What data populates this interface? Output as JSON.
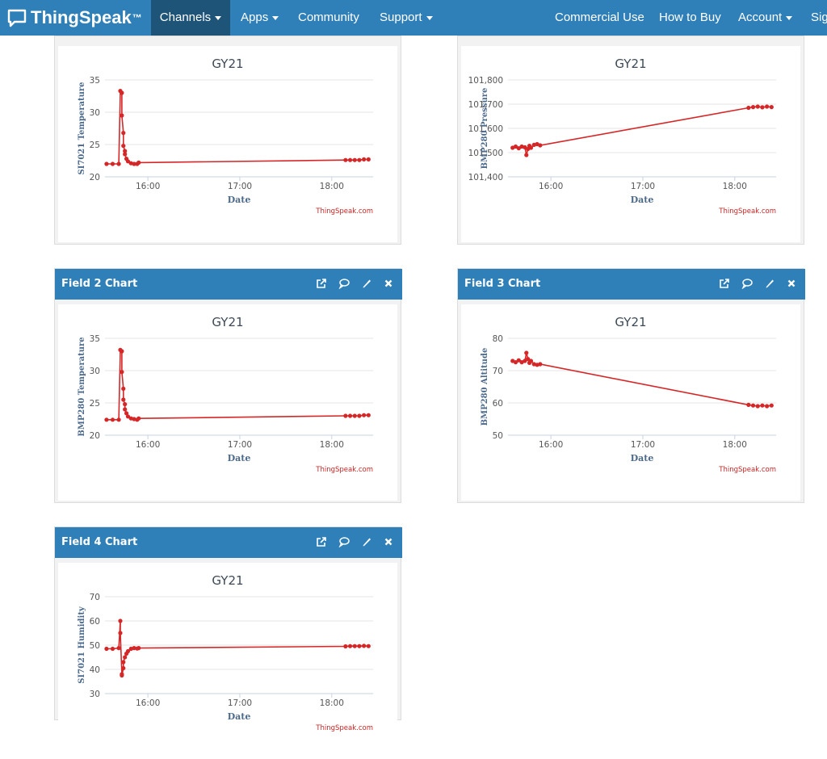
{
  "navbar": {
    "brand": "ThingSpeak",
    "brand_tm": "™",
    "left_items": [
      {
        "label": "Channels",
        "caret": true,
        "active": true
      },
      {
        "label": "Apps",
        "caret": true
      },
      {
        "label": "Community",
        "caret": false
      },
      {
        "label": "Support",
        "caret": true
      }
    ],
    "right_items": [
      {
        "label": "Commercial Use",
        "caret": false
      },
      {
        "label": "How to Buy",
        "caret": false
      },
      {
        "label": "Account",
        "caret": true
      },
      {
        "label": "Sig",
        "caret": false
      }
    ],
    "colors": {
      "bar": "#2f80b9",
      "active": "#1d5478"
    }
  },
  "cards": [
    {
      "header": "",
      "icons": []
    },
    {
      "header": "",
      "icons": []
    },
    {
      "header": "Field 2 Chart",
      "icons": [
        "external-link-icon",
        "comment-icon",
        "pencil-icon",
        "close-icon"
      ]
    },
    {
      "header": "Field 3 Chart",
      "icons": [
        "external-link-icon",
        "comment-icon",
        "pencil-icon",
        "close-icon"
      ]
    },
    {
      "header": "Field 4 Chart",
      "icons": [
        "external-link-icon",
        "comment-icon",
        "pencil-icon",
        "close-icon"
      ]
    }
  ],
  "chart_data": [
    {
      "type": "line",
      "title": "GY21",
      "xlabel": "Date",
      "ylabel": "SI7021 Temperature",
      "credit": "ThingSpeak.com",
      "ylim": [
        20,
        35
      ],
      "yticks": [
        20,
        25,
        30,
        35
      ],
      "ytick_labels": [
        "20",
        "25",
        "30",
        "35"
      ],
      "xlim": [
        "15:32",
        "18:27"
      ],
      "xticks": [
        "16:00",
        "17:00",
        "18:00"
      ],
      "grid": true,
      "color": "#d62728",
      "series": [
        {
          "x": [
            "15:33",
            "15:37",
            "15:41",
            "15:42",
            "15:43",
            "15:43",
            "15:44",
            "15:44",
            "15:45",
            "15:45",
            "15:46",
            "15:47",
            "15:49",
            "15:51",
            "15:53",
            "15:54",
            "18:09",
            "18:12",
            "18:15",
            "18:18",
            "18:21",
            "18:24"
          ],
          "y": [
            22.0,
            22.0,
            22.0,
            33.3,
            33.0,
            29.5,
            26.8,
            24.8,
            24.0,
            23.5,
            22.8,
            22.4,
            22.1,
            22.0,
            22.0,
            22.2,
            22.6,
            22.6,
            22.6,
            22.6,
            22.7,
            22.7
          ]
        }
      ]
    },
    {
      "type": "line",
      "title": "GY21",
      "xlabel": "Date",
      "ylabel": "BMP280 Pressure",
      "credit": "ThingSpeak.com",
      "ylim": [
        101400,
        101800
      ],
      "yticks": [
        101400,
        101500,
        101600,
        101700,
        101800
      ],
      "ytick_labels": [
        "101,400",
        "101,500",
        "101,600",
        "101,700",
        "101,800"
      ],
      "xlim": [
        "15:32",
        "18:27"
      ],
      "xticks": [
        "16:00",
        "17:00",
        "18:00"
      ],
      "grid": true,
      "color": "#d62728",
      "series": [
        {
          "x": [
            "15:35",
            "15:37",
            "15:39",
            "15:41",
            "15:43",
            "15:44",
            "15:45",
            "15:46",
            "15:47",
            "15:49",
            "15:51",
            "15:53",
            "18:09",
            "18:12",
            "18:15",
            "18:18",
            "18:21",
            "18:24"
          ],
          "y": [
            101520,
            101525,
            101518,
            101525,
            101522,
            101490,
            101515,
            101528,
            101520,
            101532,
            101535,
            101530,
            101685,
            101688,
            101690,
            101687,
            101690,
            101688
          ]
        }
      ]
    },
    {
      "type": "line",
      "title": "GY21",
      "xlabel": "Date",
      "ylabel": "BMP280 Temperature",
      "credit": "ThingSpeak.com",
      "ylim": [
        20,
        35
      ],
      "yticks": [
        20,
        25,
        30,
        35
      ],
      "ytick_labels": [
        "20",
        "25",
        "30",
        "35"
      ],
      "xlim": [
        "15:32",
        "18:27"
      ],
      "xticks": [
        "16:00",
        "17:00",
        "18:00"
      ],
      "grid": true,
      "color": "#d62728",
      "series": [
        {
          "x": [
            "15:33",
            "15:37",
            "15:41",
            "15:42",
            "15:43",
            "15:43",
            "15:44",
            "15:44",
            "15:45",
            "15:45",
            "15:46",
            "15:47",
            "15:49",
            "15:51",
            "15:53",
            "15:54",
            "18:09",
            "18:12",
            "18:15",
            "18:18",
            "18:21",
            "18:24"
          ],
          "y": [
            22.4,
            22.4,
            22.4,
            33.2,
            33.0,
            29.8,
            27.2,
            25.5,
            24.8,
            24.0,
            23.4,
            22.9,
            22.6,
            22.5,
            22.4,
            22.6,
            23.0,
            23.0,
            23.0,
            23.0,
            23.1,
            23.1
          ]
        }
      ]
    },
    {
      "type": "line",
      "title": "GY21",
      "xlabel": "Date",
      "ylabel": "BMP280 Altitude",
      "credit": "ThingSpeak.com",
      "ylim": [
        50,
        80
      ],
      "yticks": [
        50,
        60,
        70,
        80
      ],
      "ytick_labels": [
        "50",
        "60",
        "70",
        "80"
      ],
      "xlim": [
        "15:32",
        "18:27"
      ],
      "xticks": [
        "16:00",
        "17:00",
        "18:00"
      ],
      "grid": true,
      "color": "#d62728",
      "series": [
        {
          "x": [
            "15:35",
            "15:37",
            "15:39",
            "15:41",
            "15:43",
            "15:44",
            "15:45",
            "15:46",
            "15:47",
            "15:49",
            "15:51",
            "15:53",
            "18:09",
            "18:12",
            "18:15",
            "18:18",
            "18:21",
            "18:24"
          ],
          "y": [
            73.0,
            72.6,
            73.2,
            72.6,
            73.0,
            75.5,
            73.6,
            72.4,
            73.0,
            72.0,
            71.8,
            72.0,
            59.4,
            59.2,
            59.0,
            59.2,
            59.0,
            59.2
          ]
        }
      ]
    },
    {
      "type": "line",
      "title": "GY21",
      "xlabel": "Date",
      "ylabel": "SI7021 Humidity",
      "credit": "ThingSpeak.com",
      "ylim": [
        30,
        70
      ],
      "yticks": [
        30,
        40,
        50,
        60,
        70
      ],
      "ytick_labels": [
        "30",
        "40",
        "50",
        "60",
        "70"
      ],
      "xlim": [
        "15:32",
        "18:27"
      ],
      "xticks": [
        "16:00",
        "17:00",
        "18:00"
      ],
      "grid": true,
      "color": "#d62728",
      "series": [
        {
          "x": [
            "15:33",
            "15:37",
            "15:41",
            "15:42",
            "15:42",
            "15:43",
            "15:43",
            "15:44",
            "15:44",
            "15:45",
            "15:46",
            "15:47",
            "15:49",
            "15:51",
            "15:53",
            "15:54",
            "18:09",
            "18:12",
            "18:15",
            "18:18",
            "18:21",
            "18:24"
          ],
          "y": [
            48.5,
            48.5,
            48.8,
            60.0,
            55.0,
            38.0,
            37.5,
            40.5,
            43.0,
            45.0,
            46.5,
            47.5,
            48.5,
            48.8,
            48.6,
            48.8,
            49.5,
            49.6,
            49.6,
            49.6,
            49.7,
            49.6
          ]
        }
      ]
    }
  ]
}
